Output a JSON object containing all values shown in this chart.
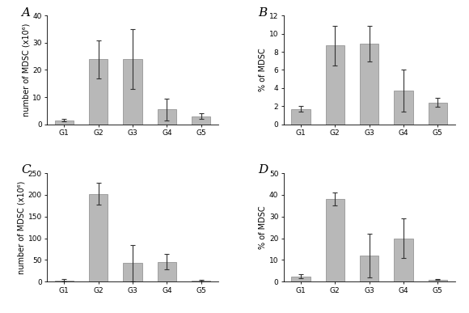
{
  "groups": [
    "G1",
    "G2",
    "G3",
    "G4",
    "G5"
  ],
  "A": {
    "values": [
      1.5,
      24,
      24,
      5.5,
      3
    ],
    "errors": [
      0.5,
      7,
      11,
      4,
      1
    ],
    "ylabel": "number of MDSC (x10⁶)",
    "ylim": [
      0,
      40
    ],
    "yticks": [
      0,
      10,
      20,
      30,
      40
    ],
    "label": "A"
  },
  "B": {
    "values": [
      1.7,
      8.7,
      8.9,
      3.7,
      2.4
    ],
    "errors": [
      0.3,
      2.2,
      2.0,
      2.3,
      0.5
    ],
    "ylabel": "% of MDSC",
    "ylim": [
      0,
      12
    ],
    "yticks": [
      0,
      2,
      4,
      6,
      8,
      10,
      12
    ],
    "label": "B"
  },
  "C": {
    "values": [
      3,
      202,
      43,
      46,
      3
    ],
    "errors": [
      3,
      25,
      42,
      18,
      2
    ],
    "ylabel": "number of MDSC (x10⁶)",
    "ylim": [
      0,
      250
    ],
    "yticks": [
      0,
      50,
      100,
      150,
      200,
      250
    ],
    "label": "C"
  },
  "D": {
    "values": [
      2.5,
      38,
      12,
      20,
      1
    ],
    "errors": [
      0.8,
      3,
      10,
      9,
      0.3
    ],
    "ylabel": "% of MDSC",
    "ylim": [
      0,
      50
    ],
    "yticks": [
      0,
      10,
      20,
      30,
      40,
      50
    ],
    "label": "D"
  },
  "bar_color": "#b8b8b8",
  "bar_edgecolor": "#888888",
  "bar_width": 0.55,
  "capsize": 2,
  "error_color": "#333333",
  "error_linewidth": 0.8,
  "label_fontsize": 11,
  "tick_fontsize": 6.5,
  "ylabel_fontsize": 7,
  "background_color": "#ffffff"
}
